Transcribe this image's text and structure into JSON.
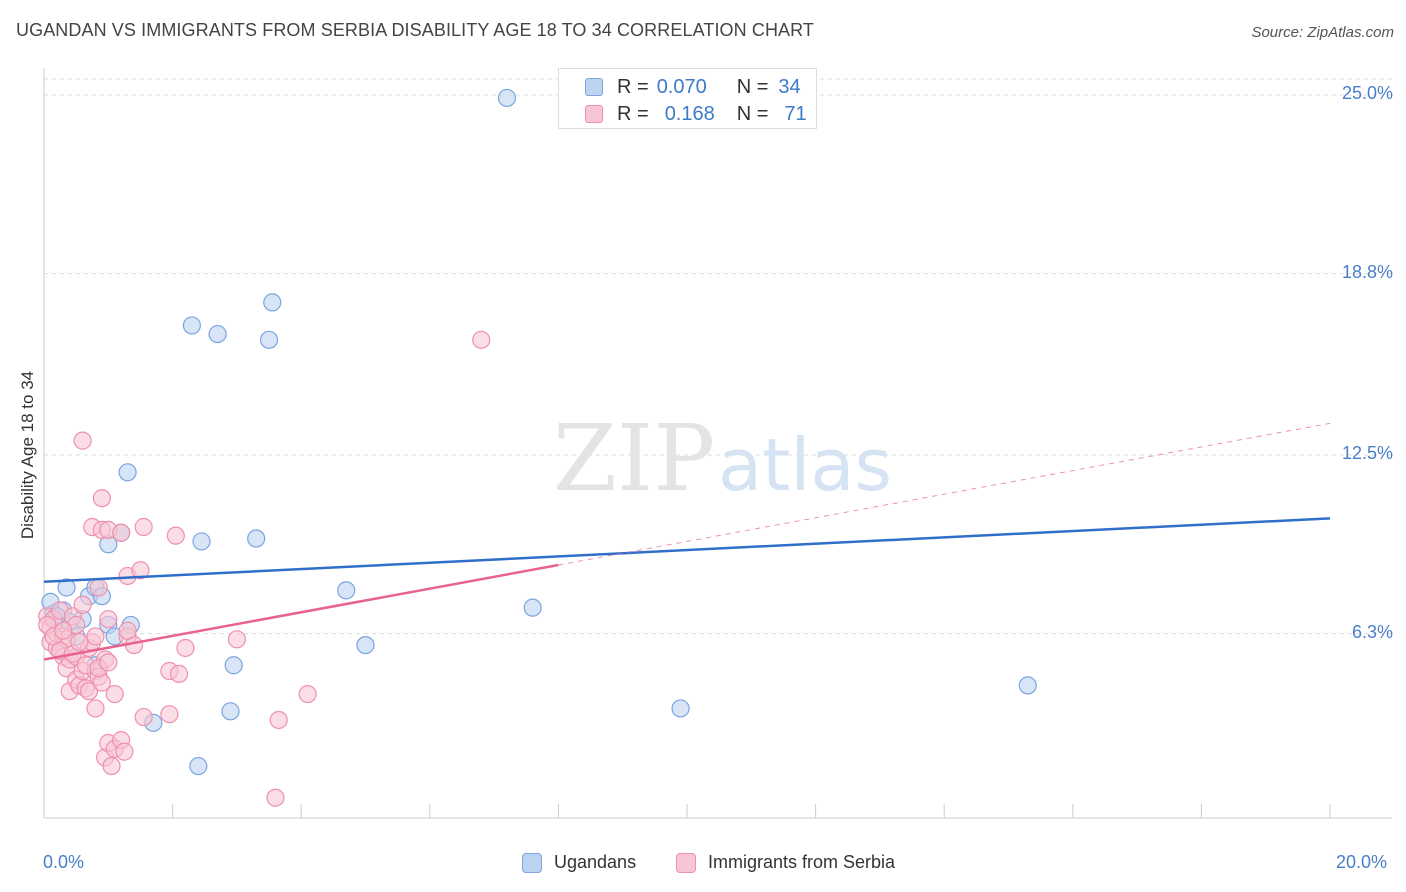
{
  "header": {
    "title": "UGANDAN VS IMMIGRANTS FROM SERBIA DISABILITY AGE 18 TO 34 CORRELATION CHART",
    "source": "Source: ZipAtlas.com"
  },
  "watermark": {
    "zip": "ZIP",
    "atlas": "atlas"
  },
  "colors": {
    "blue_fill": "#bcd3f0",
    "blue_stroke": "#7ba5df",
    "blue_line": "#2f6fc9",
    "pink_fill": "#f7c6d4",
    "pink_stroke": "#ef90ae",
    "pink_line": "#e8638f",
    "grid": "#dddddd",
    "tick_text": "#4a7fc8"
  },
  "legend_top": {
    "rows": [
      {
        "r_label": "R =",
        "r_value": "0.070",
        "n_label": "N =",
        "n_value": "34"
      },
      {
        "r_label": "R =",
        "r_value": "0.168",
        "n_label": "N =",
        "n_value": "71"
      }
    ]
  },
  "legend_bottom": {
    "items": [
      "Ugandans",
      "Immigrants from Serbia"
    ]
  },
  "chart_data": {
    "type": "scatter",
    "title": "UGANDAN VS IMMIGRANTS FROM SERBIA DISABILITY AGE 18 TO 34 CORRELATION CHART",
    "xlabel": "",
    "ylabel": "Disability Age 18 to 34",
    "xlim": [
      0,
      20
    ],
    "ylim": [
      0,
      25.8
    ],
    "x_tick_labels": [
      "0.0%",
      "20.0%"
    ],
    "y_ticks": [
      6.3,
      12.5,
      18.8,
      25.0
    ],
    "y_tick_labels": [
      "6.3%",
      "12.5%",
      "18.8%",
      "25.0%"
    ],
    "x_minor_ticks": [
      0,
      2,
      4,
      6,
      8,
      10,
      12,
      14,
      16,
      18,
      20
    ],
    "series": [
      {
        "name": "Ugandans",
        "R": 0.07,
        "N": 34,
        "trend": {
          "x": [
            0,
            20
          ],
          "y": [
            8.1,
            10.3
          ],
          "dashed_from": null
        },
        "points": [
          [
            0.15,
            7.0
          ],
          [
            0.3,
            7.1
          ],
          [
            0.35,
            7.9
          ],
          [
            0.4,
            6.7
          ],
          [
            0.5,
            6.2
          ],
          [
            0.6,
            6.8
          ],
          [
            0.7,
            7.6
          ],
          [
            0.8,
            7.9
          ],
          [
            0.9,
            7.6
          ],
          [
            0.8,
            5.2
          ],
          [
            1.0,
            6.6
          ],
          [
            1.1,
            6.2
          ],
          [
            1.0,
            9.4
          ],
          [
            1.2,
            9.8
          ],
          [
            1.3,
            11.9
          ],
          [
            1.35,
            6.6
          ],
          [
            1.7,
            3.2
          ],
          [
            2.3,
            17.0
          ],
          [
            2.4,
            1.7
          ],
          [
            2.45,
            9.5
          ],
          [
            2.7,
            16.7
          ],
          [
            2.9,
            3.6
          ],
          [
            2.95,
            5.2
          ],
          [
            3.3,
            9.6
          ],
          [
            3.5,
            16.5
          ],
          [
            3.55,
            17.8
          ],
          [
            4.7,
            7.8
          ],
          [
            5.0,
            5.9
          ],
          [
            7.2,
            24.9
          ],
          [
            7.6,
            7.2
          ],
          [
            9.9,
            3.7
          ],
          [
            15.3,
            4.5
          ],
          [
            0.1,
            7.4
          ],
          [
            0.2,
            6.9
          ]
        ]
      },
      {
        "name": "Immigrants from Serbia",
        "R": 0.168,
        "N": 71,
        "trend": {
          "x": [
            0,
            20
          ],
          "y": [
            5.4,
            13.6
          ],
          "dashed_from": 8.0
        },
        "points": [
          [
            0.05,
            6.9
          ],
          [
            0.1,
            6.5
          ],
          [
            0.1,
            6.0
          ],
          [
            0.15,
            6.8
          ],
          [
            0.2,
            5.8
          ],
          [
            0.2,
            6.3
          ],
          [
            0.25,
            7.1
          ],
          [
            0.3,
            6.2
          ],
          [
            0.3,
            5.5
          ],
          [
            0.35,
            5.1
          ],
          [
            0.35,
            6.1
          ],
          [
            0.4,
            5.4
          ],
          [
            0.4,
            4.3
          ],
          [
            0.45,
            6.9
          ],
          [
            0.5,
            5.5
          ],
          [
            0.5,
            4.7
          ],
          [
            0.5,
            6.6
          ],
          [
            0.55,
            4.5
          ],
          [
            0.6,
            5.0
          ],
          [
            0.6,
            7.3
          ],
          [
            0.6,
            13.0
          ],
          [
            0.65,
            4.4
          ],
          [
            0.7,
            5.8
          ],
          [
            0.7,
            4.3
          ],
          [
            0.75,
            6.0
          ],
          [
            0.75,
            10.0
          ],
          [
            0.8,
            5.0
          ],
          [
            0.8,
            3.7
          ],
          [
            0.85,
            4.8
          ],
          [
            0.85,
            7.9
          ],
          [
            0.9,
            4.6
          ],
          [
            0.9,
            11.0
          ],
          [
            0.9,
            9.9
          ],
          [
            0.95,
            5.4
          ],
          [
            0.95,
            2.0
          ],
          [
            1.0,
            2.5
          ],
          [
            1.0,
            6.8
          ],
          [
            1.0,
            9.9
          ],
          [
            1.05,
            1.7
          ],
          [
            1.1,
            2.3
          ],
          [
            1.1,
            4.2
          ],
          [
            1.2,
            9.8
          ],
          [
            1.2,
            2.6
          ],
          [
            1.25,
            2.2
          ],
          [
            1.3,
            8.3
          ],
          [
            1.3,
            6.2
          ],
          [
            1.4,
            5.9
          ],
          [
            1.5,
            8.5
          ],
          [
            1.55,
            3.4
          ],
          [
            1.55,
            10.0
          ],
          [
            1.95,
            3.5
          ],
          [
            1.95,
            5.0
          ],
          [
            2.05,
            9.7
          ],
          [
            2.1,
            4.9
          ],
          [
            2.2,
            5.8
          ],
          [
            3.0,
            6.1
          ],
          [
            3.6,
            0.6
          ],
          [
            3.65,
            3.3
          ],
          [
            4.1,
            4.2
          ],
          [
            6.8,
            16.5
          ],
          [
            0.05,
            6.6
          ],
          [
            0.15,
            6.2
          ],
          [
            0.25,
            5.7
          ],
          [
            0.3,
            6.4
          ],
          [
            0.45,
            5.6
          ],
          [
            0.55,
            6.0
          ],
          [
            0.65,
            5.2
          ],
          [
            0.8,
            6.2
          ],
          [
            0.85,
            5.1
          ],
          [
            1.0,
            5.3
          ],
          [
            1.3,
            6.4
          ]
        ]
      }
    ]
  }
}
